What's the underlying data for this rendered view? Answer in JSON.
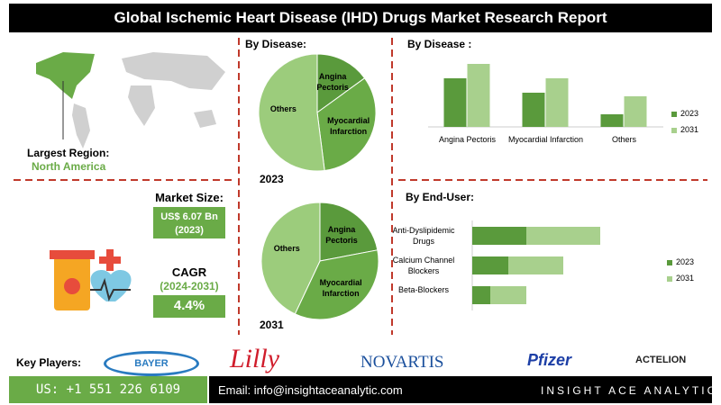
{
  "header": {
    "title": "Global Ischemic Heart Disease (IHD) Drugs Market Research Report"
  },
  "region": {
    "label": "Largest Region:",
    "value": "North America"
  },
  "market_size": {
    "label": "Market Size:",
    "value": "US$ 6.07 Bn",
    "year": "(2023)"
  },
  "cagr": {
    "label": "CAGR",
    "period": "(2024-2031)",
    "value": "4.4%"
  },
  "key_players": {
    "label": "Key Players:",
    "logos": [
      "BAYER",
      "Lilly",
      "NOVARTIS",
      "Pfizer",
      "ACTELION"
    ]
  },
  "footer": {
    "phone": "US: +1 551 226 6109",
    "email": "Email: info@insightaceanalytic.com",
    "brand": "INSIGHT ACE ANALYTIC"
  },
  "chart_data": [
    {
      "type": "pie",
      "title": "By Disease:",
      "caption": "2023",
      "categories": [
        "Angina Pectoris",
        "Myocardial Infarction",
        "Others"
      ],
      "values": [
        15,
        33,
        52
      ],
      "colors": [
        "#5a9a3c",
        "#6aab47",
        "#9ccc7c"
      ]
    },
    {
      "type": "pie",
      "caption": "2031",
      "categories": [
        "Angina Pectoris",
        "Myocardial Infarction",
        "Others"
      ],
      "values": [
        22,
        35,
        43
      ],
      "colors": [
        "#5a9a3c",
        "#6aab47",
        "#9ccc7c"
      ]
    },
    {
      "type": "bar",
      "title": "By  Disease :",
      "categories": [
        "Angina Pectoris",
        "Myocardial Infarction",
        "Others"
      ],
      "series": [
        {
          "name": "2023",
          "color": "#5a9a3c",
          "values": [
            54,
            38,
            14
          ]
        },
        {
          "name": "2031",
          "color": "#a8d08d",
          "values": [
            70,
            54,
            34
          ]
        }
      ],
      "ylim": [
        0,
        80
      ]
    },
    {
      "type": "hbar",
      "title": "By End-User:",
      "categories": [
        "Anti-Dyslipidemic Drugs",
        "Calcium Channel Blockers",
        "Beta-Blockers"
      ],
      "series": [
        {
          "name": "2023",
          "color": "#5a9a3c",
          "values": [
            60,
            40,
            20
          ]
        },
        {
          "name": "2031",
          "color": "#a8d08d",
          "values": [
            82,
            61,
            40
          ]
        }
      ],
      "xlim": [
        0,
        160
      ]
    }
  ]
}
